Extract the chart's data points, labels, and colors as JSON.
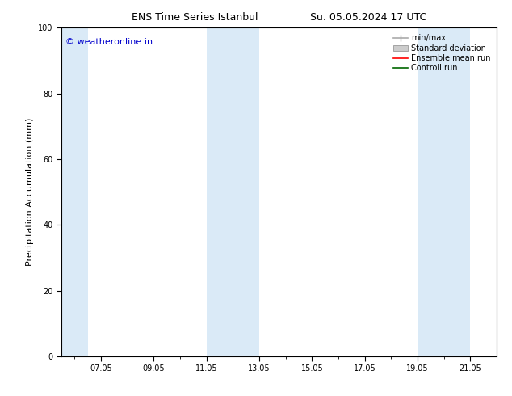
{
  "title_left": "ENS Time Series Istanbul",
  "title_right": "Su. 05.05.2024 17 UTC",
  "ylabel": "Precipitation Accumulation (mm)",
  "ylim": [
    0,
    100
  ],
  "yticks": [
    0,
    20,
    40,
    60,
    80,
    100
  ],
  "xlim": [
    5.5,
    22.0
  ],
  "xtick_positions": [
    7,
    9,
    11,
    13,
    15,
    17,
    19,
    21
  ],
  "xtick_labels": [
    "07.05",
    "09.05",
    "11.05",
    "13.05",
    "15.05",
    "17.05",
    "19.05",
    "21.05"
  ],
  "shaded_bands": [
    {
      "x_start": 5.5,
      "x_end": 6.5,
      "color": "#daeaf7"
    },
    {
      "x_start": 11.0,
      "x_end": 13.0,
      "color": "#daeaf7"
    },
    {
      "x_start": 19.0,
      "x_end": 21.0,
      "color": "#daeaf7"
    }
  ],
  "watermark_text": "© weatheronline.in",
  "watermark_color": "#0000cc",
  "background_color": "#ffffff",
  "title_fontsize": 9,
  "axis_label_fontsize": 8,
  "tick_fontsize": 7,
  "legend_fontsize": 7,
  "watermark_fontsize": 8,
  "legend_gray_line": "#aaaaaa",
  "legend_gray_box": "#cccccc",
  "legend_red": "#ff0000",
  "legend_green": "#006600"
}
